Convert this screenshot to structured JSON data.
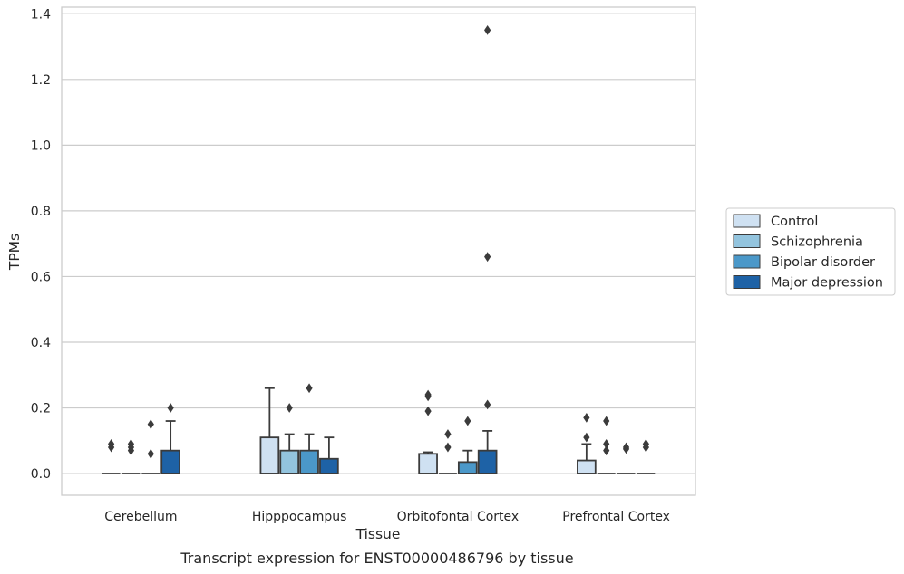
{
  "chart_data": {
    "type": "box",
    "xlabel": "Tissue",
    "ylabel": "TPMs",
    "caption": "Transcript expression for ENST00000486796 by tissue",
    "ylim": [
      -0.066,
      1.42
    ],
    "yticks": [
      0.0,
      0.2,
      0.4,
      0.6,
      0.8,
      1.0,
      1.2,
      1.4
    ],
    "ytick_labels": [
      "0.0",
      "0.2",
      "0.4",
      "0.6",
      "0.8",
      "1.0",
      "1.2",
      "1.4"
    ],
    "grid": "horizontal",
    "legend_position": "right",
    "categories": [
      "Cerebellum",
      "Hipppocampus",
      "Orbitofontal Cortex",
      "Prefrontal Cortex"
    ],
    "series": [
      {
        "name": "Control",
        "color": "#cfe1f2",
        "boxes": [
          {
            "q1": 0,
            "median": 0,
            "q3": 0,
            "whisker_low": 0,
            "whisker_high": 0,
            "outliers": [
              0.08,
              0.09
            ]
          },
          {
            "q1": 0,
            "median": 0,
            "q3": 0.11,
            "whisker_low": 0,
            "whisker_high": 0.26,
            "outliers": []
          },
          {
            "q1": 0,
            "median": 0,
            "q3": 0.06,
            "whisker_low": 0,
            "whisker_high": 0.065,
            "outliers": [
              0.19,
              0.235,
              0.24
            ]
          },
          {
            "q1": 0,
            "median": 0,
            "q3": 0.04,
            "whisker_low": 0,
            "whisker_high": 0.09,
            "outliers": [
              0.11,
              0.17
            ]
          }
        ]
      },
      {
        "name": "Schizophrenia",
        "color": "#93c4de",
        "boxes": [
          {
            "q1": 0,
            "median": 0,
            "q3": 0,
            "whisker_low": 0,
            "whisker_high": 0,
            "outliers": [
              0.07,
              0.08,
              0.09
            ]
          },
          {
            "q1": 0,
            "median": 0,
            "q3": 0.07,
            "whisker_low": 0,
            "whisker_high": 0.12,
            "outliers": [
              0.2
            ]
          },
          {
            "q1": 0,
            "median": 0,
            "q3": 0,
            "whisker_low": 0,
            "whisker_high": 0,
            "outliers": [
              0.08,
              0.12
            ]
          },
          {
            "q1": 0,
            "median": 0,
            "q3": 0,
            "whisker_low": 0,
            "whisker_high": 0,
            "outliers": [
              0.07,
              0.09,
              0.16
            ]
          }
        ]
      },
      {
        "name": "Bipolar disorder",
        "color": "#4b98c9",
        "boxes": [
          {
            "q1": 0,
            "median": 0,
            "q3": 0,
            "whisker_low": 0,
            "whisker_high": 0,
            "outliers": [
              0.06,
              0.15
            ]
          },
          {
            "q1": 0,
            "median": 0,
            "q3": 0.07,
            "whisker_low": 0,
            "whisker_high": 0.12,
            "outliers": [
              0.26
            ]
          },
          {
            "q1": 0,
            "median": 0,
            "q3": 0.035,
            "whisker_low": 0,
            "whisker_high": 0.07,
            "outliers": [
              0.16
            ]
          },
          {
            "q1": 0,
            "median": 0,
            "q3": 0,
            "whisker_low": 0,
            "whisker_high": 0,
            "outliers": [
              0.075,
              0.08
            ]
          }
        ]
      },
      {
        "name": "Major depression",
        "color": "#1e62a6",
        "boxes": [
          {
            "q1": 0,
            "median": 0,
            "q3": 0.07,
            "whisker_low": 0,
            "whisker_high": 0.16,
            "outliers": [
              0.2
            ]
          },
          {
            "q1": 0,
            "median": 0,
            "q3": 0.045,
            "whisker_low": 0,
            "whisker_high": 0.11,
            "outliers": []
          },
          {
            "q1": 0,
            "median": 0,
            "q3": 0.07,
            "whisker_low": 0,
            "whisker_high": 0.13,
            "outliers": [
              0.21,
              0.66,
              1.35
            ]
          },
          {
            "q1": 0,
            "median": 0,
            "q3": 0,
            "whisker_low": 0,
            "whisker_high": 0,
            "outliers": [
              0.08,
              0.09
            ]
          }
        ]
      }
    ]
  }
}
